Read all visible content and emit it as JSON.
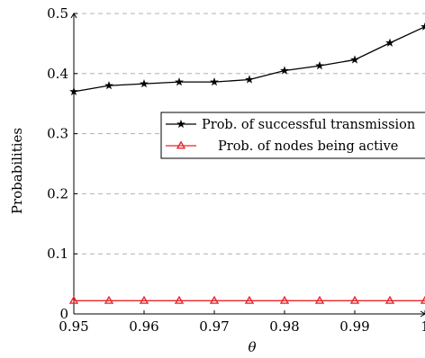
{
  "chart_data": {
    "type": "line",
    "xlabel": "θ",
    "ylabel": "Probabilities",
    "xlim": [
      0.95,
      1.0
    ],
    "ylim": [
      0,
      0.5
    ],
    "grid": "horizontal-dashed",
    "legend_position": "center-right",
    "xticks": [
      "0.95",
      "0.96",
      "0.97",
      "0.98",
      "0.99",
      "1"
    ],
    "yticks": [
      "0",
      "0.1",
      "0.2",
      "0.3",
      "0.4",
      "0.5"
    ],
    "x": [
      0.95,
      0.955,
      0.96,
      0.965,
      0.97,
      0.975,
      0.98,
      0.985,
      0.99,
      0.995,
      1.0
    ],
    "series": [
      {
        "name": "Prob. of successful transmission",
        "color": "#000000",
        "marker": "star",
        "values": [
          0.37,
          0.38,
          0.383,
          0.386,
          0.386,
          0.39,
          0.405,
          0.413,
          0.423,
          0.451,
          0.478
        ]
      },
      {
        "name": "Prob. of nodes being active",
        "color": "#e8252b",
        "marker": "triangle",
        "values": [
          0.022,
          0.022,
          0.022,
          0.022,
          0.022,
          0.022,
          0.022,
          0.022,
          0.022,
          0.022,
          0.022
        ]
      }
    ]
  }
}
